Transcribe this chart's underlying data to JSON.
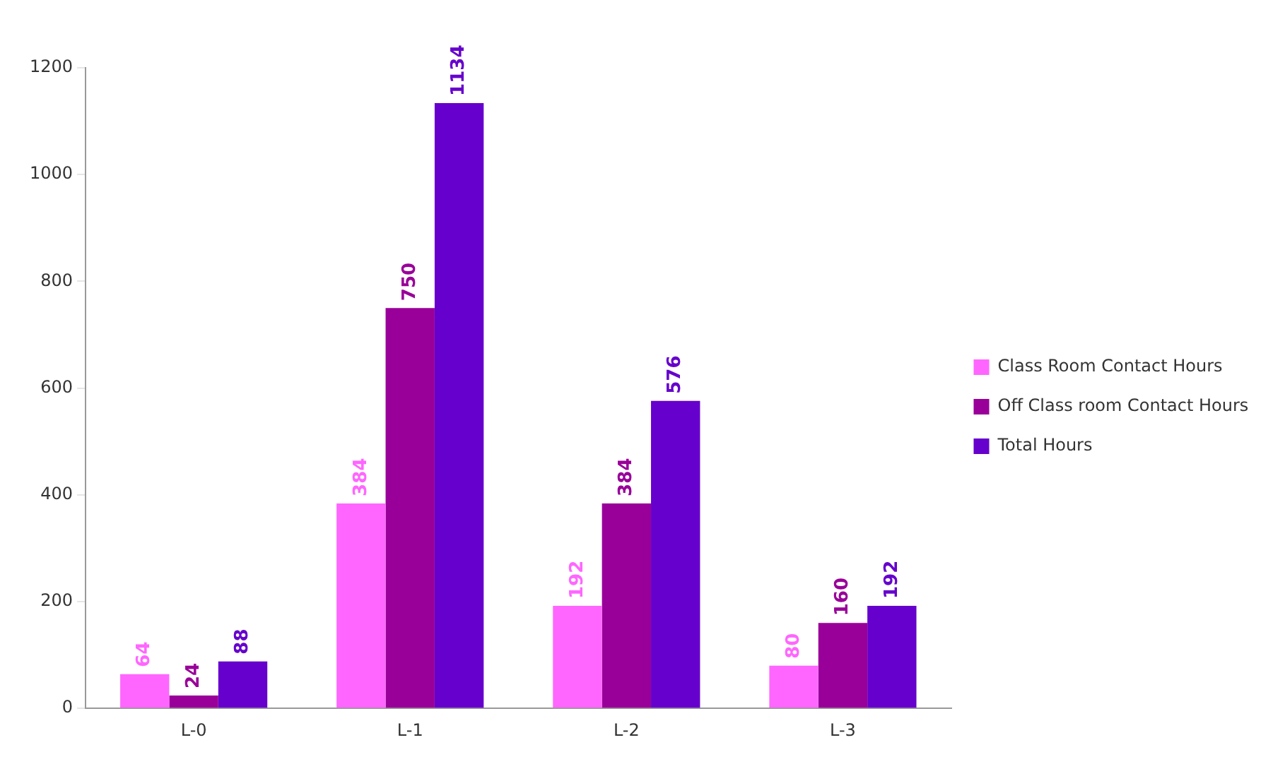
{
  "chart_data": {
    "type": "bar",
    "categories": [
      "L-0",
      "L-1",
      "L-2",
      "L-3"
    ],
    "series": [
      {
        "name": "Class Room Contact Hours",
        "color": "#ff66ff",
        "values": [
          64,
          384,
          192,
          80
        ]
      },
      {
        "name": "Off Class room Contact Hours",
        "color": "#990099",
        "values": [
          24,
          750,
          384,
          160
        ]
      },
      {
        "name": "Total Hours",
        "color": "#6600cc",
        "values": [
          88,
          1134,
          576,
          192
        ]
      }
    ],
    "ylim": [
      0,
      1200
    ],
    "yticks": [
      0,
      200,
      400,
      600,
      800,
      1000,
      1200
    ],
    "grid": false,
    "legend": "right",
    "data_labels": true
  }
}
